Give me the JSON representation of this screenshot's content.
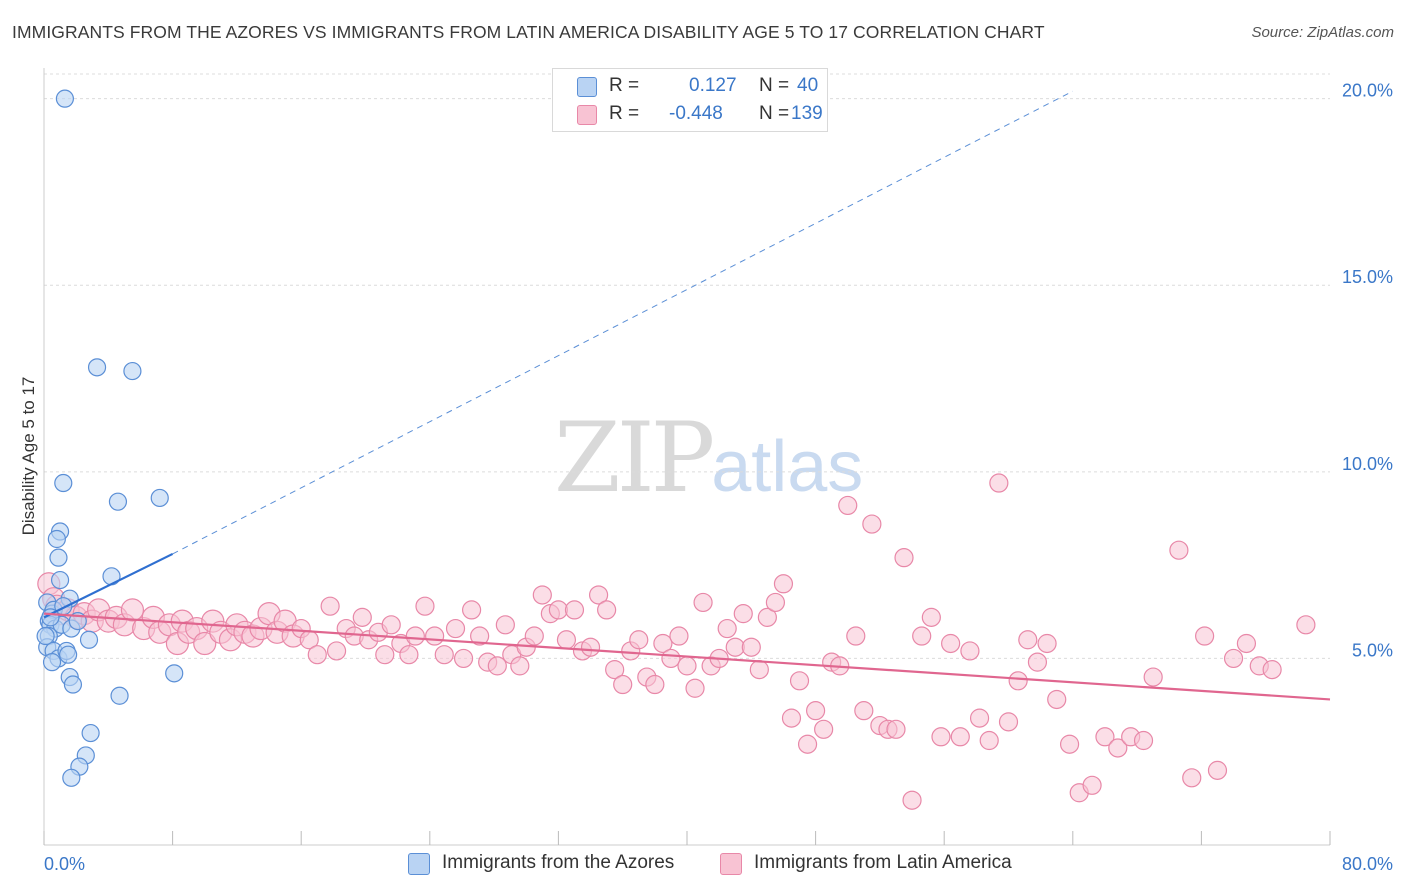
{
  "title": "IMMIGRANTS FROM THE AZORES VS IMMIGRANTS FROM LATIN AMERICA DISABILITY AGE 5 TO 17 CORRELATION CHART",
  "source": "Source: ZipAtlas.com",
  "watermark": {
    "zip": "ZIP",
    "atlas": "atlas"
  },
  "legend": {
    "r_label": "R =",
    "n_label": "N =",
    "rows": [
      {
        "r": "0.127",
        "n": "40"
      },
      {
        "r": "-0.448",
        "n": "139"
      }
    ]
  },
  "colors": {
    "azores_fill": "#b9d3f3",
    "azores_stroke": "#5b8fd6",
    "azores_line": "#2f6fd0",
    "latin_fill": "#f8c3d3",
    "latin_stroke": "#e888a8",
    "latin_line": "#e0668f",
    "grid": "#dcdcdc",
    "tick_label": "#3a77c8"
  },
  "chart_data": {
    "type": "scatter",
    "title": "IMMIGRANTS FROM THE AZORES VS IMMIGRANTS FROM LATIN AMERICA DISABILITY AGE 5 TO 17 CORRELATION CHART",
    "xlabel": "",
    "ylabel": "Disability Age 5 to 17",
    "xlim": [
      0,
      80
    ],
    "ylim": [
      0,
      20.5
    ],
    "x_tick_labels": [
      "0.0%",
      "80.0%"
    ],
    "y_ticks": [
      5,
      10,
      15,
      20
    ],
    "y_tick_labels": [
      "5.0%",
      "10.0%",
      "15.0%",
      "20.0%"
    ],
    "grid": true,
    "legend_position": "top-center",
    "series": [
      {
        "name": "Immigrants from the Azores",
        "r": 0.127,
        "n": 40,
        "trend": {
          "x0": 0,
          "y0": 6.1,
          "x1": 8,
          "y1": 7.8,
          "dashed_to_x": 64,
          "dashed_to_y": 20.2
        },
        "points": [
          [
            1.3,
            20.0
          ],
          [
            3.3,
            12.8
          ],
          [
            5.5,
            12.7
          ],
          [
            1.2,
            9.7
          ],
          [
            4.6,
            9.2
          ],
          [
            7.2,
            9.3
          ],
          [
            1.0,
            8.4
          ],
          [
            0.8,
            8.2
          ],
          [
            0.9,
            7.7
          ],
          [
            4.2,
            7.2
          ],
          [
            1.0,
            7.1
          ],
          [
            0.2,
            6.5
          ],
          [
            0.5,
            6.2
          ],
          [
            0.3,
            6.0
          ],
          [
            1.6,
            6.6
          ],
          [
            0.6,
            6.3
          ],
          [
            0.4,
            5.9
          ],
          [
            0.7,
            5.8
          ],
          [
            1.1,
            5.9
          ],
          [
            1.7,
            5.8
          ],
          [
            2.1,
            6.0
          ],
          [
            0.3,
            5.6
          ],
          [
            0.2,
            5.3
          ],
          [
            0.6,
            5.2
          ],
          [
            0.9,
            5.0
          ],
          [
            1.4,
            5.2
          ],
          [
            1.5,
            5.1
          ],
          [
            2.8,
            5.5
          ],
          [
            0.5,
            4.9
          ],
          [
            1.6,
            4.5
          ],
          [
            1.8,
            4.3
          ],
          [
            8.1,
            4.6
          ],
          [
            4.7,
            4.0
          ],
          [
            2.9,
            3.0
          ],
          [
            2.6,
            2.4
          ],
          [
            2.2,
            2.1
          ],
          [
            1.7,
            1.8
          ],
          [
            0.1,
            5.6
          ],
          [
            0.4,
            6.1
          ],
          [
            1.2,
            6.4
          ]
        ]
      },
      {
        "name": "Immigrants from Latin America",
        "r": -0.448,
        "n": 139,
        "trend": {
          "x0": 0,
          "y0": 6.2,
          "x1": 80,
          "y1": 3.9
        },
        "points": [
          [
            0.3,
            7.0
          ],
          [
            0.6,
            6.6
          ],
          [
            0.8,
            6.4
          ],
          [
            1.0,
            6.2
          ],
          [
            1.5,
            6.3
          ],
          [
            2.0,
            6.1
          ],
          [
            2.5,
            6.2
          ],
          [
            3.0,
            6.0
          ],
          [
            3.4,
            6.3
          ],
          [
            4.0,
            6.0
          ],
          [
            4.5,
            6.1
          ],
          [
            5.0,
            5.9
          ],
          [
            5.5,
            6.3
          ],
          [
            6.2,
            5.8
          ],
          [
            6.8,
            6.1
          ],
          [
            7.2,
            5.7
          ],
          [
            7.8,
            5.9
          ],
          [
            8.3,
            5.4
          ],
          [
            8.6,
            6.0
          ],
          [
            9.0,
            5.7
          ],
          [
            9.5,
            5.8
          ],
          [
            10.0,
            5.4
          ],
          [
            10.5,
            6.0
          ],
          [
            11.0,
            5.7
          ],
          [
            11.6,
            5.5
          ],
          [
            12.0,
            5.9
          ],
          [
            12.5,
            5.7
          ],
          [
            13.0,
            5.6
          ],
          [
            13.5,
            5.8
          ],
          [
            14.0,
            6.2
          ],
          [
            14.5,
            5.7
          ],
          [
            15.0,
            6.0
          ],
          [
            15.5,
            5.6
          ],
          [
            16.0,
            5.8
          ],
          [
            16.5,
            5.5
          ],
          [
            17.0,
            5.1
          ],
          [
            17.8,
            6.4
          ],
          [
            18.2,
            5.2
          ],
          [
            18.8,
            5.8
          ],
          [
            19.3,
            5.6
          ],
          [
            19.8,
            6.1
          ],
          [
            20.2,
            5.5
          ],
          [
            20.8,
            5.7
          ],
          [
            21.2,
            5.1
          ],
          [
            21.6,
            5.9
          ],
          [
            22.2,
            5.4
          ],
          [
            22.7,
            5.1
          ],
          [
            23.1,
            5.6
          ],
          [
            23.7,
            6.4
          ],
          [
            24.3,
            5.6
          ],
          [
            24.9,
            5.1
          ],
          [
            25.6,
            5.8
          ],
          [
            26.1,
            5.0
          ],
          [
            26.6,
            6.3
          ],
          [
            27.1,
            5.6
          ],
          [
            27.6,
            4.9
          ],
          [
            28.2,
            4.8
          ],
          [
            28.7,
            5.9
          ],
          [
            29.1,
            5.1
          ],
          [
            29.6,
            4.8
          ],
          [
            30.0,
            5.3
          ],
          [
            30.5,
            5.6
          ],
          [
            31.0,
            6.7
          ],
          [
            31.5,
            6.2
          ],
          [
            32.0,
            6.3
          ],
          [
            32.5,
            5.5
          ],
          [
            33.0,
            6.3
          ],
          [
            33.5,
            5.2
          ],
          [
            34.0,
            5.3
          ],
          [
            34.5,
            6.7
          ],
          [
            35.0,
            6.3
          ],
          [
            35.5,
            4.7
          ],
          [
            36.0,
            4.3
          ],
          [
            36.5,
            5.2
          ],
          [
            37.0,
            5.5
          ],
          [
            37.5,
            4.5
          ],
          [
            38.0,
            4.3
          ],
          [
            38.5,
            5.4
          ],
          [
            39.0,
            5.0
          ],
          [
            39.5,
            5.6
          ],
          [
            40.0,
            4.8
          ],
          [
            40.5,
            4.2
          ],
          [
            41.0,
            6.5
          ],
          [
            41.5,
            4.8
          ],
          [
            42.0,
            5.0
          ],
          [
            42.5,
            5.8
          ],
          [
            43.0,
            5.3
          ],
          [
            43.5,
            6.2
          ],
          [
            44.0,
            5.3
          ],
          [
            44.5,
            4.7
          ],
          [
            45.0,
            6.1
          ],
          [
            45.5,
            6.5
          ],
          [
            46.0,
            7.0
          ],
          [
            46.5,
            3.4
          ],
          [
            47.0,
            4.4
          ],
          [
            47.5,
            2.7
          ],
          [
            48.0,
            3.6
          ],
          [
            48.5,
            3.1
          ],
          [
            49.0,
            4.9
          ],
          [
            49.5,
            4.8
          ],
          [
            50.0,
            9.1
          ],
          [
            50.5,
            5.6
          ],
          [
            51.0,
            3.6
          ],
          [
            51.5,
            8.6
          ],
          [
            52.0,
            3.2
          ],
          [
            52.5,
            3.1
          ],
          [
            53.0,
            3.1
          ],
          [
            53.5,
            7.7
          ],
          [
            54.0,
            1.2
          ],
          [
            54.6,
            5.6
          ],
          [
            55.2,
            6.1
          ],
          [
            55.8,
            2.9
          ],
          [
            56.4,
            5.4
          ],
          [
            57.0,
            2.9
          ],
          [
            57.6,
            5.2
          ],
          [
            58.2,
            3.4
          ],
          [
            58.8,
            2.8
          ],
          [
            59.4,
            9.7
          ],
          [
            60.0,
            3.3
          ],
          [
            60.6,
            4.4
          ],
          [
            61.2,
            5.5
          ],
          [
            61.8,
            4.9
          ],
          [
            62.4,
            5.4
          ],
          [
            63.0,
            3.9
          ],
          [
            63.8,
            2.7
          ],
          [
            64.4,
            1.4
          ],
          [
            65.2,
            1.6
          ],
          [
            66.0,
            2.9
          ],
          [
            66.8,
            2.6
          ],
          [
            67.6,
            2.9
          ],
          [
            68.4,
            2.8
          ],
          [
            69.0,
            4.5
          ],
          [
            70.6,
            7.9
          ],
          [
            71.4,
            1.8
          ],
          [
            72.2,
            5.6
          ],
          [
            73.0,
            2.0
          ],
          [
            74.0,
            5.0
          ],
          [
            74.8,
            5.4
          ],
          [
            75.6,
            4.8
          ],
          [
            76.4,
            4.7
          ],
          [
            78.5,
            5.9
          ]
        ]
      }
    ]
  },
  "bottom_legend": [
    {
      "label": "Immigrants from the Azores"
    },
    {
      "label": "Immigrants from Latin America"
    }
  ]
}
